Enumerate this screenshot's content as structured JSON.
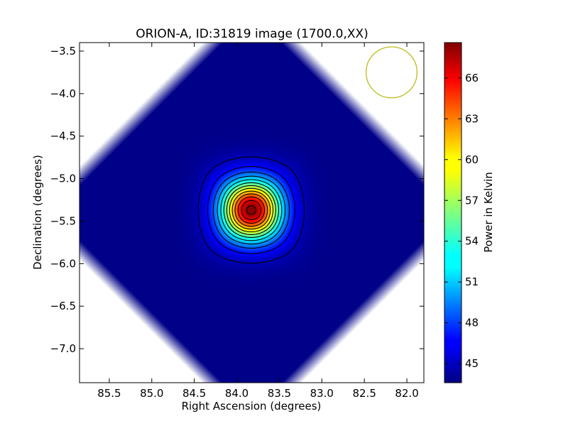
{
  "chart_data": {
    "type": "heatmap",
    "title": "ORION-A, ID:31819 image (1700.0,XX)",
    "xlabel": "Right Ascension (degrees)",
    "ylabel": "Declination (degrees)",
    "xlim": [
      85.85,
      81.8
    ],
    "ylim": [
      -7.4,
      -3.4
    ],
    "x_ticks": [
      85.5,
      85.0,
      84.5,
      84.0,
      83.5,
      83.0,
      82.5,
      82.0
    ],
    "x_tick_labels": [
      "85.5",
      "85.0",
      "84.5",
      "84.0",
      "83.5",
      "83.0",
      "82.5",
      "82.0"
    ],
    "y_ticks": [
      -3.5,
      -4.0,
      -4.5,
      -5.0,
      -5.5,
      -6.0,
      -6.5,
      -7.0
    ],
    "y_tick_labels": [
      "−3.5",
      "−4.0",
      "−4.5",
      "−5.0",
      "−5.5",
      "−6.0",
      "−6.5",
      "−7.0"
    ],
    "colormap": "jet",
    "colorbar": {
      "label": "Power in Kelvin",
      "range": [
        43.6,
        68.6
      ],
      "ticks": [
        45,
        48,
        51,
        54,
        57,
        60,
        63,
        66
      ],
      "tick_labels": [
        "45",
        "48",
        "51",
        "54",
        "57",
        "60",
        "63",
        "66"
      ]
    },
    "source": {
      "ra": 83.83,
      "dec": -5.37,
      "peak": 68.5,
      "background": 43.8
    },
    "contour_count": 13,
    "beam_circle": {
      "ra": 82.18,
      "dec": -3.75,
      "radius_deg": 0.3,
      "color": "#bcbc1a"
    },
    "mask": "octagonal footprint, white corners",
    "grid": false
  }
}
